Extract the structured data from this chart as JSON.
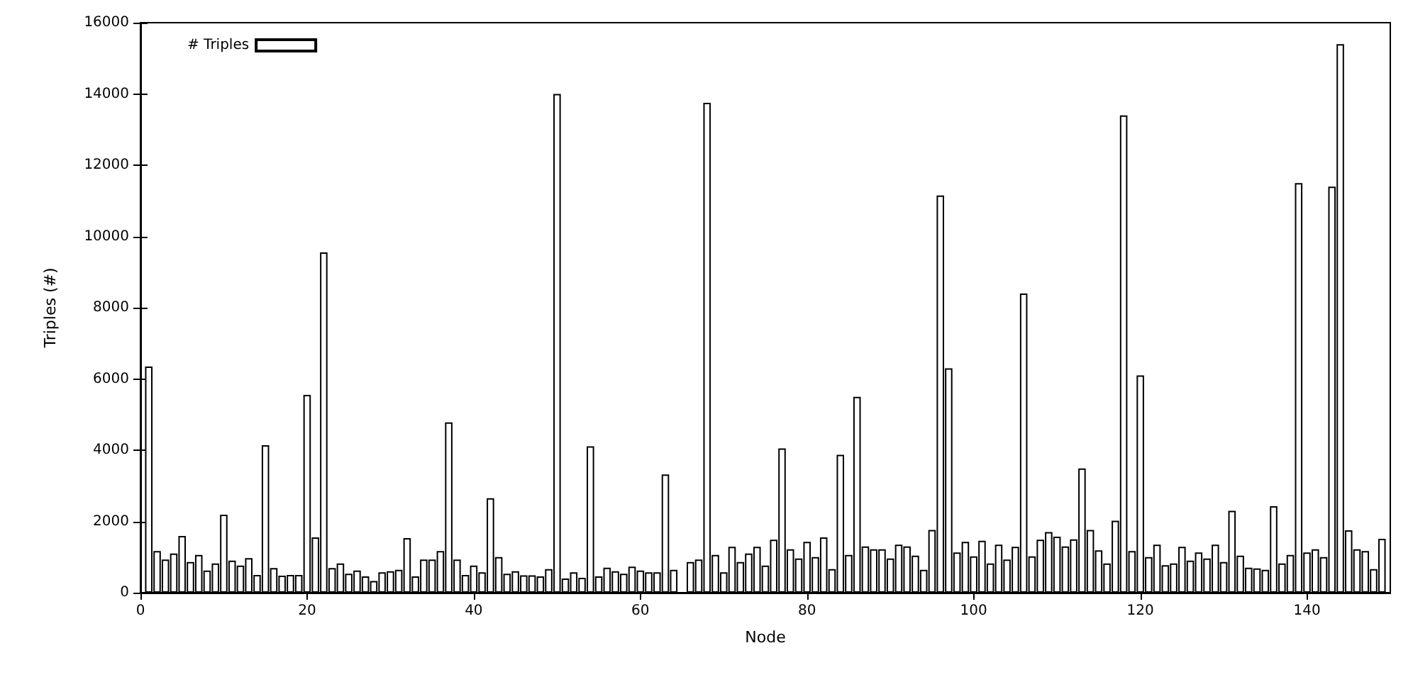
{
  "chart_data": {
    "type": "bar",
    "xlabel": "Node",
    "ylabel": "Triples (#)",
    "xlim": [
      0,
      150
    ],
    "xticks": [
      0,
      20,
      40,
      60,
      80,
      100,
      120,
      140
    ],
    "ylim": [
      0,
      16000
    ],
    "yticks": [
      0,
      2000,
      4000,
      6000,
      8000,
      10000,
      12000,
      14000,
      16000
    ],
    "grid": false,
    "legend": "top left",
    "series": [
      {
        "name": "# Triples",
        "color": "#ffffff",
        "x": [
          1,
          2,
          3,
          4,
          5,
          6,
          7,
          8,
          9,
          10,
          11,
          12,
          13,
          14,
          15,
          16,
          17,
          18,
          19,
          20,
          21,
          22,
          23,
          24,
          25,
          26,
          27,
          28,
          29,
          30,
          31,
          32,
          33,
          34,
          35,
          36,
          37,
          38,
          39,
          40,
          41,
          42,
          43,
          44,
          45,
          46,
          47,
          48,
          49,
          50,
          51,
          52,
          53,
          54,
          55,
          56,
          57,
          58,
          59,
          60,
          61,
          62,
          63,
          64,
          65,
          66,
          67,
          68,
          69,
          70,
          71,
          72,
          73,
          74,
          75,
          76,
          77,
          78,
          79,
          80,
          81,
          82,
          83,
          84,
          85,
          86,
          87,
          88,
          89,
          90,
          91,
          92,
          93,
          94,
          95,
          96,
          97,
          98,
          99,
          100,
          101,
          102,
          103,
          104,
          105,
          106,
          107,
          108,
          109,
          110,
          111,
          112,
          113,
          114,
          115,
          116,
          117,
          118,
          119,
          120,
          121,
          122,
          123,
          124,
          125,
          126,
          127,
          128,
          129,
          130,
          131,
          132,
          133,
          134,
          135,
          136,
          137,
          138,
          139,
          140,
          141,
          142,
          143,
          144,
          145,
          146,
          147,
          148,
          149
        ],
        "values": [
          6350,
          1170,
          930,
          1100,
          1590,
          860,
          1060,
          620,
          820,
          2190,
          900,
          760,
          970,
          500,
          4140,
          690,
          480,
          500,
          500,
          5550,
          1550,
          9550,
          690,
          820,
          530,
          620,
          460,
          330,
          570,
          600,
          640,
          1530,
          460,
          930,
          930,
          1170,
          4780,
          930,
          500,
          760,
          570,
          2650,
          1000,
          530,
          600,
          490,
          490,
          460,
          660,
          14000,
          400,
          570,
          420,
          4110,
          460,
          700,
          600,
          530,
          730,
          620,
          570,
          570,
          3320,
          640,
          null,
          860,
          930,
          13750,
          1060,
          570,
          1290,
          860,
          1100,
          1290,
          760,
          1490,
          4050,
          1220,
          960,
          1430,
          1000,
          1550,
          660,
          3870,
          1060,
          5500,
          1300,
          1220,
          1220,
          960,
          1350,
          1300,
          1040,
          640,
          1760,
          11150,
          6300,
          1130,
          1430,
          1020,
          1460,
          820,
          1350,
          930,
          1290,
          8400,
          1020,
          1490,
          1700,
          1570,
          1300,
          1500,
          3490,
          1760,
          1190,
          820,
          2020,
          13400,
          1170,
          6100,
          1000,
          1350,
          770,
          820,
          1290,
          900,
          1130,
          960,
          1350,
          860,
          2300,
          1040,
          700,
          680,
          640,
          2430,
          820,
          1060,
          11500,
          1130,
          1220,
          1000,
          11400,
          15400,
          1750,
          1220,
          1170,
          660,
          1510
        ]
      }
    ]
  }
}
